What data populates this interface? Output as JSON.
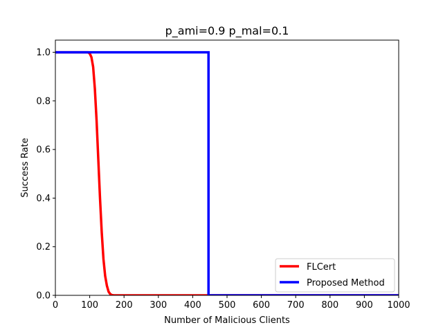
{
  "chart_data": {
    "type": "line",
    "title": "p_ami=0.9   p_mal=0.1",
    "xlabel": "Number of Malicious Clients",
    "ylabel": "Success Rate",
    "xlim": [
      0,
      1000
    ],
    "ylim": [
      0,
      1.05
    ],
    "xticks": [
      0,
      100,
      200,
      300,
      400,
      500,
      600,
      700,
      800,
      900,
      1000
    ],
    "yticks": [
      0.0,
      0.2,
      0.4,
      0.6,
      0.8,
      1.0
    ],
    "xtick_labels": [
      "0",
      "100",
      "200",
      "300",
      "400",
      "500",
      "600",
      "700",
      "800",
      "900",
      "1000"
    ],
    "ytick_labels": [
      "0.0",
      "0.2",
      "0.4",
      "0.6",
      "0.8",
      "1.0"
    ],
    "grid": false,
    "legend_position": "lower-right",
    "series": [
      {
        "name": "FLCert",
        "color": "#ff0000",
        "x": [
          0,
          95,
          100,
          105,
          110,
          115,
          120,
          125,
          130,
          135,
          140,
          145,
          150,
          155,
          160,
          165,
          170,
          1000
        ],
        "y": [
          1.0,
          1.0,
          0.995,
          0.98,
          0.94,
          0.85,
          0.72,
          0.56,
          0.4,
          0.26,
          0.15,
          0.08,
          0.04,
          0.015,
          0.005,
          0.001,
          0.0,
          0.0
        ]
      },
      {
        "name": "Proposed Method",
        "color": "#0000ff",
        "x": [
          0,
          446,
          446,
          1000
        ],
        "y": [
          1.0,
          1.0,
          0.0,
          0.0
        ]
      }
    ]
  }
}
